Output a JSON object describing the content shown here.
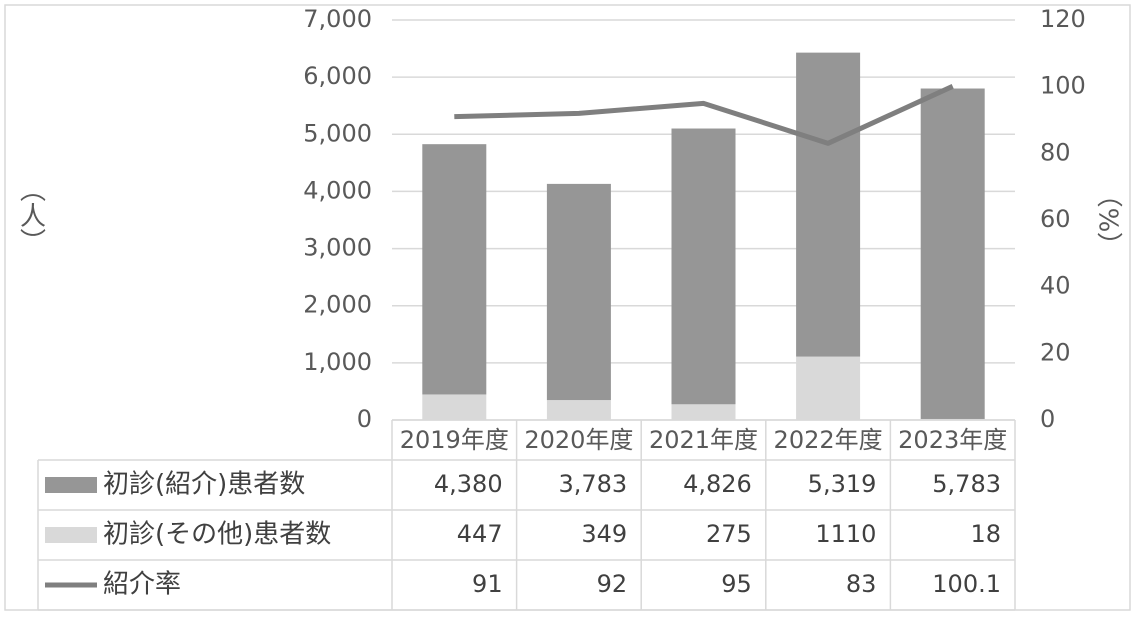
{
  "chart_data": {
    "type": "bar-line",
    "categories": [
      "2019年度",
      "2020年度",
      "2021年度",
      "2022年度",
      "2023年度"
    ],
    "y_label": "（人）",
    "y2_label": "（%）",
    "ylim": [
      0,
      7000
    ],
    "yticks": [
      0,
      {
        "value": 1000,
        "label": "1,000"
      },
      {
        "value": 2000,
        "label": "2,000"
      },
      {
        "value": 3000,
        "label": "3,000"
      },
      {
        "value": 4000,
        "label": "4,000"
      },
      {
        "value": 5000,
        "label": "5,000"
      },
      {
        "value": 6000,
        "label": "6,000"
      },
      {
        "value": 7000,
        "label": "7,000"
      }
    ],
    "y2lim": [
      0,
      120
    ],
    "y2ticks": [
      0,
      20,
      40,
      60,
      80,
      100,
      120
    ],
    "grid": true,
    "stacked": true,
    "series": [
      {
        "name": "初診(紹介)患者数",
        "type": "bar",
        "color": "#969696",
        "values": [
          4380,
          3783,
          4826,
          5319,
          5783
        ],
        "value_labels": [
          "4,380",
          "3,783",
          "4,826",
          "5,319",
          "5,783"
        ]
      },
      {
        "name": "初診(その他)患者数",
        "type": "bar",
        "color": "#d9d9d9",
        "values": [
          447,
          349,
          275,
          1110,
          18
        ]
      },
      {
        "name": "紹介率",
        "type": "line",
        "axis": "y2",
        "color": "#7f7f7f",
        "values": [
          91,
          92,
          95,
          83,
          100.1
        ]
      }
    ]
  }
}
